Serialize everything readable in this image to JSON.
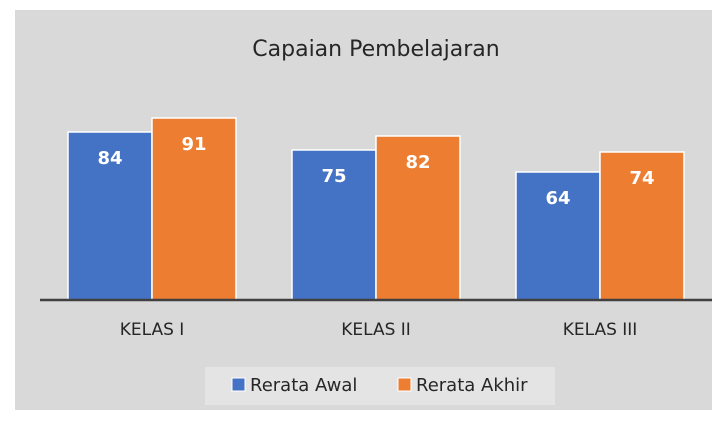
{
  "chart_data": {
    "type": "bar",
    "title": "Capaian Pembelajaran",
    "categories": [
      "KELAS I",
      "KELAS II",
      "KELAS III"
    ],
    "series": [
      {
        "name": "Rerata Awal",
        "color": "#4472c4",
        "values": [
          84,
          75,
          64
        ]
      },
      {
        "name": "Rerata Akhir",
        "color": "#ed7d31",
        "values": [
          91,
          82,
          74
        ]
      }
    ],
    "ylim": [
      0,
      100
    ]
  }
}
